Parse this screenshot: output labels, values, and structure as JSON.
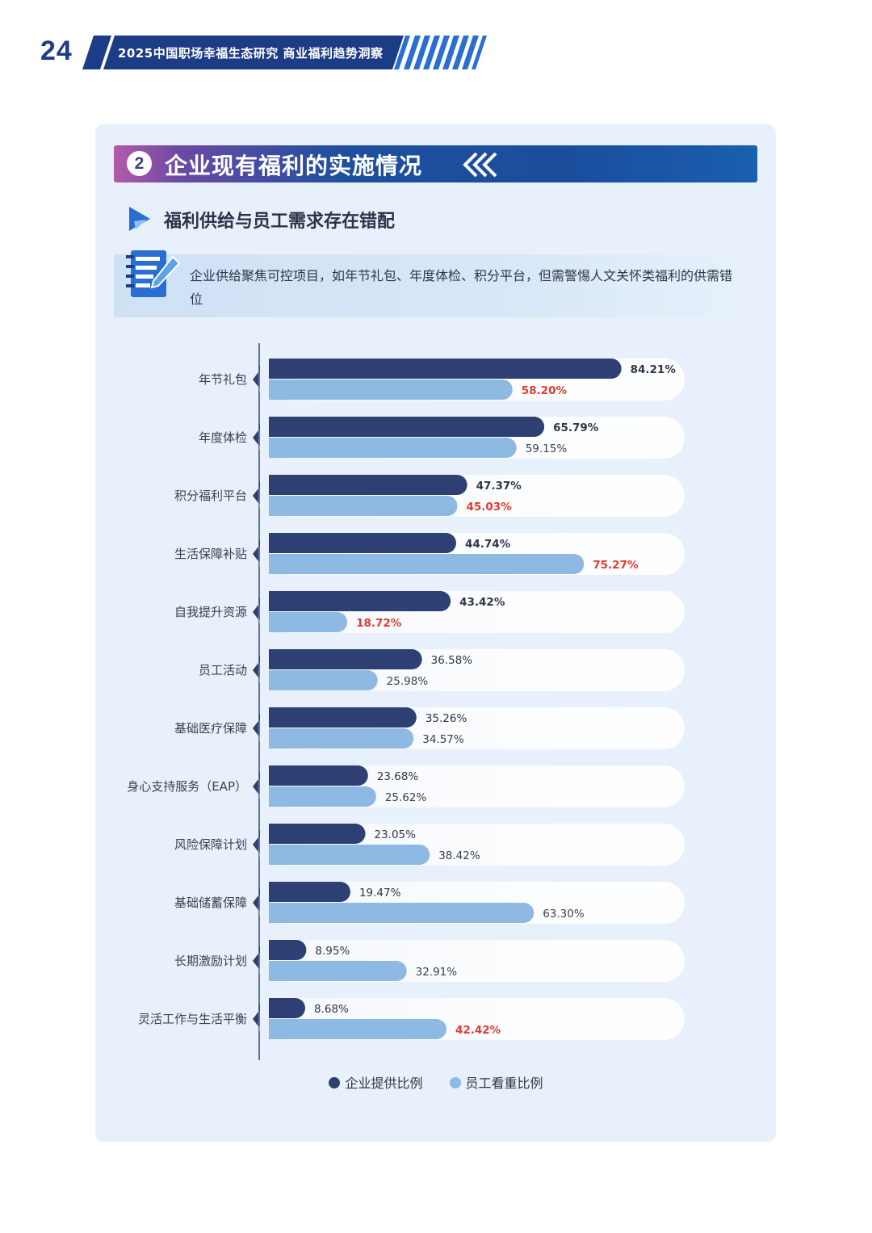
{
  "header": {
    "page_number": "24",
    "title": "2025中国职场幸福生态研究 商业福利趋势洞察"
  },
  "section": {
    "number": "2",
    "title": "企业现有福利的实施情况"
  },
  "subsection": {
    "title": "福利供给与员工需求存在错配",
    "note": "企业供给聚焦可控项目，如年节礼包、年度体检、积分平台，但需警惕人文关怀类福利的供需错位"
  },
  "colors": {
    "company": "#2e3f73",
    "employee": "#8db9e2",
    "highlight": "#e03b2e",
    "text": "#3a4150"
  },
  "chart_data": {
    "type": "bar",
    "orientation": "horizontal",
    "categories": [
      "年节礼包",
      "年度体检",
      "积分福利平台",
      "生活保障补贴",
      "自我提升资源",
      "员工活动",
      "基础医疗保障",
      "身心支持服务（EAP）",
      "风险保障计划",
      "基础储蓄保障",
      "长期激励计划",
      "灵活工作与生活平衡"
    ],
    "series": [
      {
        "name": "企业提供比例",
        "values": [
          84.21,
          65.79,
          47.37,
          44.74,
          43.42,
          36.58,
          35.26,
          23.68,
          23.05,
          19.47,
          8.95,
          8.68
        ],
        "labels": [
          "84.21%",
          "65.79%",
          "47.37%",
          "44.74%",
          "43.42%",
          "36.58%",
          "35.26%",
          "23.68%",
          "23.05%",
          "19.47%",
          "8.95%",
          "8.68%"
        ],
        "bold": [
          true,
          true,
          true,
          true,
          true,
          false,
          false,
          false,
          false,
          false,
          false,
          false
        ]
      },
      {
        "name": "员工看重比例",
        "values": [
          58.2,
          59.15,
          45.03,
          75.27,
          18.72,
          25.98,
          34.57,
          25.62,
          38.42,
          63.3,
          32.91,
          42.42
        ],
        "labels": [
          "58.20%",
          "59.15%",
          "45.03%",
          "75.27%",
          "18.72%",
          "25.98%",
          "34.57%",
          "25.62%",
          "38.42%",
          "63.30%",
          "32.91%",
          "42.42%"
        ],
        "highlight": [
          true,
          false,
          true,
          true,
          true,
          false,
          false,
          false,
          false,
          false,
          false,
          true
        ]
      }
    ],
    "xlim": [
      0,
      100
    ],
    "legend": "bottom-center",
    "grid": false
  }
}
